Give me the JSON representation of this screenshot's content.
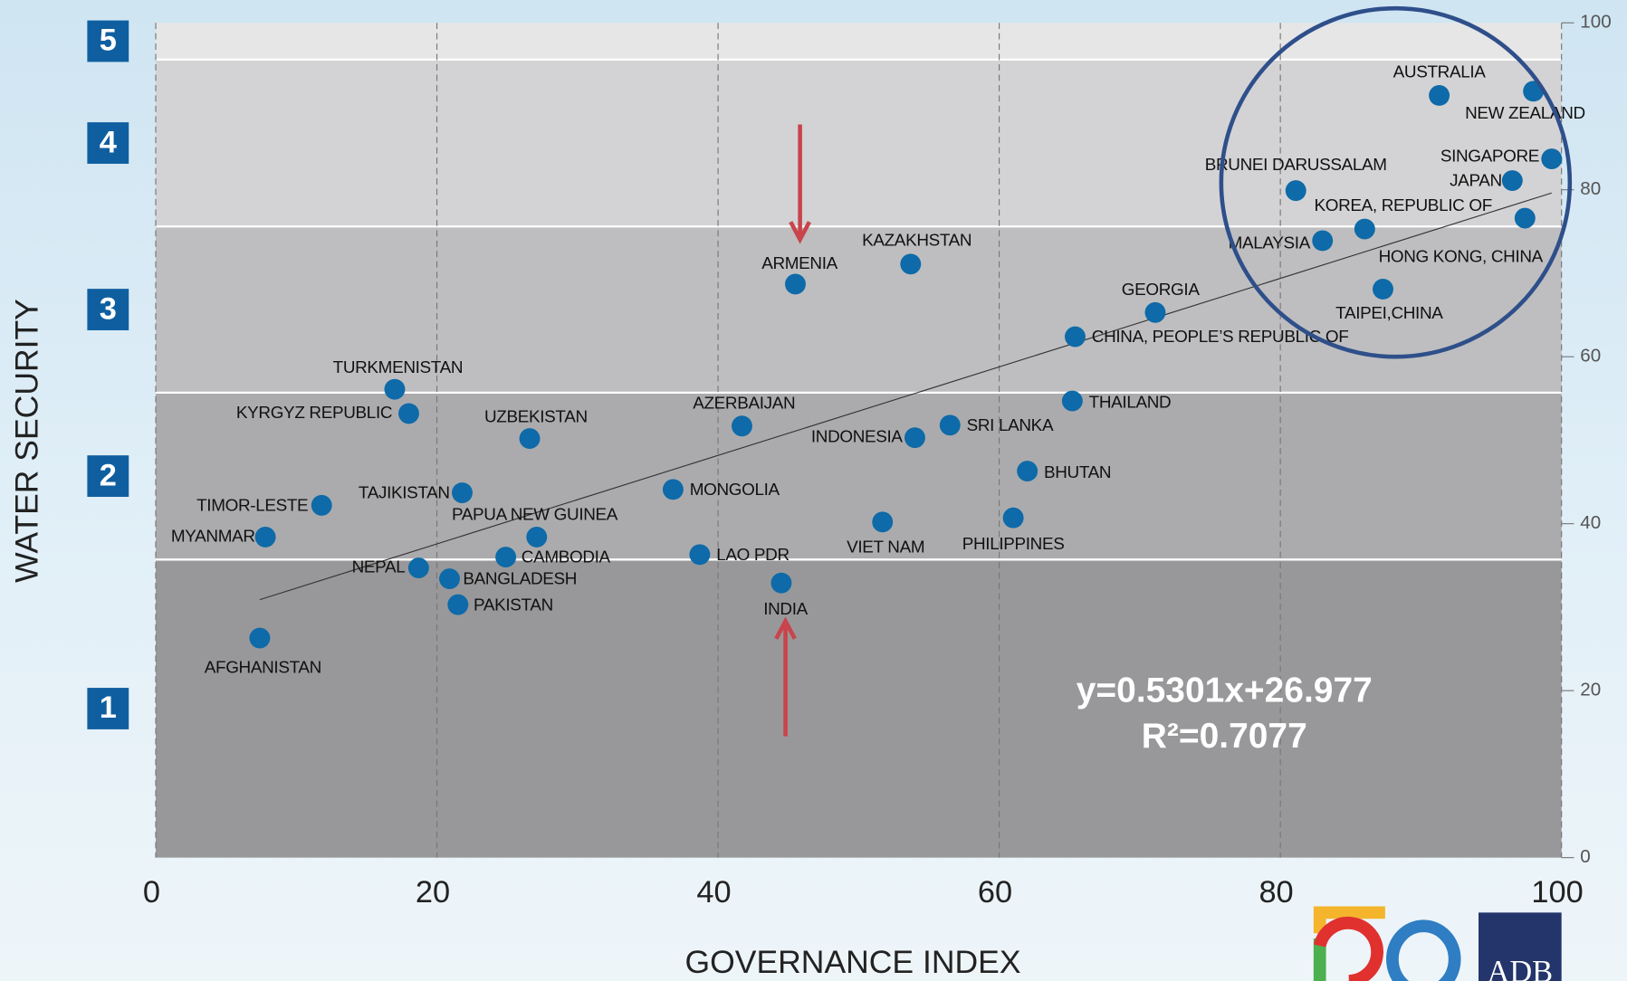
{
  "chart_data": {
    "type": "scatter",
    "x_label": "GOVERNANCE INDEX",
    "y_label": "WATER SECURITY",
    "xlim": [
      0,
      100
    ],
    "ylim": [
      0,
      100
    ],
    "xticks": [
      0,
      20,
      40,
      60,
      80,
      100
    ],
    "yticks": [
      0,
      20,
      40,
      60,
      80,
      100
    ],
    "grid": true,
    "color": "#0e6aa8",
    "bands": [
      {
        "label": "1",
        "from": 0,
        "to": 35.7,
        "color": "#98989a"
      },
      {
        "label": "2",
        "from": 35.7,
        "to": 55.7,
        "color": "#ababad"
      },
      {
        "label": "3",
        "from": 55.7,
        "to": 75.6,
        "color": "#bebec0"
      },
      {
        "label": "4",
        "from": 75.6,
        "to": 95.6,
        "color": "#d3d3d5"
      },
      {
        "label": "5",
        "from": 95.6,
        "to": 100,
        "color": "#e6e6e7"
      }
    ],
    "trendline": {
      "slope": 0.5301,
      "intercept": 26.977,
      "equation": "y=0.5301x+26.977",
      "r_squared": "R²=0.7077"
    },
    "logo": "ADB",
    "points": [
      {
        "label": "AUSTRALIA",
        "x": 91.3,
        "y": 91.3
      },
      {
        "label": "NEW ZEALAND",
        "x": 98.0,
        "y": 91.8
      },
      {
        "label": "SINGAPORE",
        "x": 99.3,
        "y": 83.7
      },
      {
        "label": "JAPAN",
        "x": 96.5,
        "y": 81.1
      },
      {
        "label": "BRUNEI DARUSSALAM",
        "x": 81.1,
        "y": 79.9
      },
      {
        "label": "KOREA, REPUBLIC OF",
        "x": 86.0,
        "y": 75.3
      },
      {
        "label": "HONG KONG, CHINA",
        "x": 97.4,
        "y": 76.6
      },
      {
        "label": "MALAYSIA",
        "x": 83.0,
        "y": 73.9
      },
      {
        "label": "TAIPEI,CHINA",
        "x": 87.3,
        "y": 68.1
      },
      {
        "label": "GEORGIA",
        "x": 71.1,
        "y": 65.3
      },
      {
        "label": "CHINA, PEOPLE’S REPUBLIC OF",
        "x": 65.4,
        "y": 62.4
      },
      {
        "label": "THAILAND",
        "x": 65.2,
        "y": 54.7
      },
      {
        "label": "KAZAKHSTAN",
        "x": 53.7,
        "y": 71.1
      },
      {
        "label": "ARMENIA",
        "x": 45.5,
        "y": 68.7
      },
      {
        "label": "AZERBAIJAN",
        "x": 41.7,
        "y": 51.7
      },
      {
        "label": "INDONESIA",
        "x": 54.0,
        "y": 50.3
      },
      {
        "label": "SRI LANKA",
        "x": 56.5,
        "y": 51.8
      },
      {
        "label": "BHUTAN",
        "x": 62.0,
        "y": 46.3
      },
      {
        "label": "PHILIPPINES",
        "x": 61.0,
        "y": 40.7
      },
      {
        "label": "VIET NAM",
        "x": 51.7,
        "y": 40.2
      },
      {
        "label": "MONGOLIA",
        "x": 36.8,
        "y": 44.1
      },
      {
        "label": "LAO PDR",
        "x": 38.7,
        "y": 36.3
      },
      {
        "label": "INDIA",
        "x": 44.5,
        "y": 32.9
      },
      {
        "label": "TURKMENISTAN",
        "x": 17.0,
        "y": 56.1
      },
      {
        "label": "KYRGYZ REPUBLIC",
        "x": 18.0,
        "y": 53.2
      },
      {
        "label": "UZBEKISTAN",
        "x": 26.6,
        "y": 50.2
      },
      {
        "label": "TAJIKISTAN",
        "x": 21.8,
        "y": 43.7
      },
      {
        "label": "TIMOR-LESTE",
        "x": 11.8,
        "y": 42.2
      },
      {
        "label": "MYANMAR",
        "x": 7.8,
        "y": 38.4
      },
      {
        "label": "PAPUA NEW GUINEA",
        "x": 27.1,
        "y": 38.4
      },
      {
        "label": "CAMBODIA",
        "x": 24.9,
        "y": 36.0
      },
      {
        "label": "NEPAL",
        "x": 18.7,
        "y": 34.7
      },
      {
        "label": "BANGLADESH",
        "x": 20.9,
        "y": 33.4
      },
      {
        "label": "PAKISTAN",
        "x": 21.5,
        "y": 30.3
      },
      {
        "label": "AFGHANISTAN",
        "x": 7.4,
        "y": 26.3
      }
    ]
  }
}
